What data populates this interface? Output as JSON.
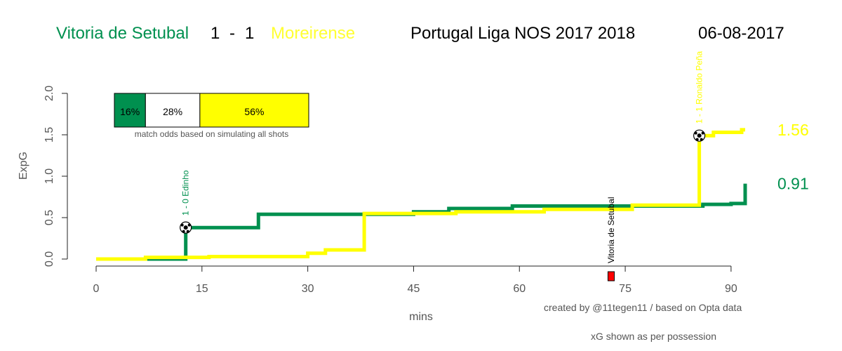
{
  "header": {
    "home_team": "Vitoria de Setubal",
    "home_score": "1",
    "separator": "-",
    "away_score": "1",
    "away_team": "Moreirense",
    "competition": "Portugal Liga NOS 2017 2018",
    "date": "06-08-2017"
  },
  "colors": {
    "home": "#00904f",
    "away": "#ffff00",
    "away_text": "#ffff33",
    "card": "#ff0000",
    "axis": "#555555"
  },
  "odds_box": {
    "home_win": "16%",
    "draw": "28%",
    "away_win": "56%",
    "home_win_pct": 16,
    "draw_pct": 28,
    "away_win_pct": 56,
    "caption": "match odds based on simulating all shots"
  },
  "footer": {
    "credit": "created by @11tegen11   /   based on Opta data",
    "note": "xG shown as per possession"
  },
  "chart_data": {
    "type": "line",
    "xlabel": "mins",
    "ylabel": "ExpG",
    "xlim": [
      0,
      92
    ],
    "ylim": [
      0,
      2.0
    ],
    "x_ticks": [
      "0",
      "15",
      "30",
      "45",
      "60",
      "75",
      "90"
    ],
    "y_ticks": [
      "0.0",
      "0.5",
      "1.0",
      "1.5",
      "2.0"
    ],
    "step": true,
    "series": [
      {
        "team": "home",
        "final_label": "0.91",
        "points": [
          [
            0,
            0
          ],
          [
            7,
            0
          ],
          [
            12.7,
            0
          ],
          [
            12.7,
            0.38
          ],
          [
            23,
            0.38
          ],
          [
            23,
            0.54
          ],
          [
            45,
            0.54
          ],
          [
            45,
            0.57
          ],
          [
            50,
            0.57
          ],
          [
            50,
            0.61
          ],
          [
            59,
            0.61
          ],
          [
            59,
            0.64
          ],
          [
            86,
            0.64
          ],
          [
            86,
            0.66
          ],
          [
            90,
            0.66
          ],
          [
            90,
            0.67
          ],
          [
            92,
            0.67
          ],
          [
            92,
            0.91
          ]
        ]
      },
      {
        "team": "away",
        "final_label": "1.56",
        "points": [
          [
            0,
            0
          ],
          [
            7,
            0
          ],
          [
            7,
            0.02
          ],
          [
            16,
            0.02
          ],
          [
            16,
            0.03
          ],
          [
            30,
            0.03
          ],
          [
            30,
            0.07
          ],
          [
            32.5,
            0.07
          ],
          [
            32.5,
            0.11
          ],
          [
            38,
            0.11
          ],
          [
            38,
            0.55
          ],
          [
            51,
            0.55
          ],
          [
            51,
            0.57
          ],
          [
            63.5,
            0.57
          ],
          [
            63.5,
            0.6
          ],
          [
            76,
            0.6
          ],
          [
            76,
            0.65
          ],
          [
            85.5,
            0.65
          ],
          [
            85.5,
            1.49
          ],
          [
            87.5,
            1.49
          ],
          [
            87.5,
            1.53
          ],
          [
            91.5,
            1.53
          ],
          [
            91.5,
            1.56
          ],
          [
            92,
            1.56
          ]
        ]
      }
    ],
    "goals": [
      {
        "minute": 12.7,
        "xg": 0.38,
        "team": "home",
        "label": "1 - 0 Edinho"
      },
      {
        "minute": 85.5,
        "xg": 1.49,
        "team": "away",
        "label": "1 - 1 Ronaldo Peña"
      }
    ],
    "cards": [
      {
        "minute": 73,
        "team": "home",
        "label": "Vitoria de Setubal",
        "color": "red"
      }
    ],
    "grid": false
  }
}
